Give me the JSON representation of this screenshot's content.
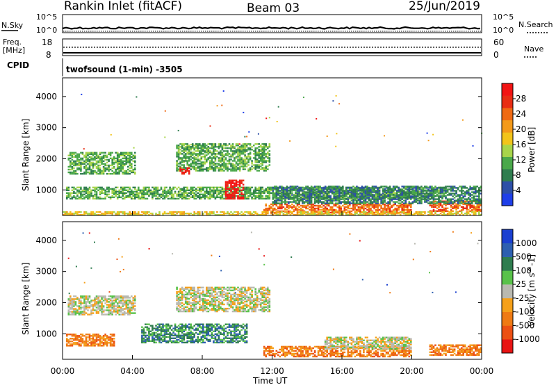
{
  "header": {
    "site": "Rankin Inlet (fitACF)",
    "beam": "Beam 03",
    "date": "25/Jun/2019"
  },
  "top_panels": {
    "nsky_label": "N.Sky",
    "nsky_ticks": [
      "10^5",
      "10^0"
    ],
    "nsearch_label": "N.Search",
    "nsearch_ticks": [
      "10^5",
      "10^0"
    ],
    "freq_label": "Freq.",
    "freq_unit": "[MHz]",
    "freq_ticks": [
      "18",
      "8"
    ],
    "nave_label": "Nave",
    "nave_ticks": [
      "60",
      "0"
    ],
    "cpid_label": "CPID",
    "cpid_text": "twofsound (1-min) -3505"
  },
  "chart_data": [
    {
      "type": "heatmap",
      "name": "power-panel",
      "ylabel": "Slant Range [km]",
      "yticks": [
        "1000",
        "2000",
        "3000",
        "4000"
      ],
      "ylim": [
        180,
        4600
      ],
      "xlim": [
        0,
        24
      ],
      "colorbar": {
        "label": "Power [dB]",
        "ticks": [
          "4",
          "8",
          "12",
          "16",
          "20",
          "24",
          "28"
        ],
        "colors": [
          "#1f3fe8",
          "#2d4fa7",
          "#2f7d4f",
          "#4aa84a",
          "#a8d54a",
          "#f2c41b",
          "#f39a1b",
          "#ef6a14",
          "#e82d14",
          "#f21414"
        ]
      },
      "echo_bands": [
        {
          "t0": 0.3,
          "t1": 4.2,
          "r0": 1500,
          "r1": 2200,
          "level": 3
        },
        {
          "t0": 0.2,
          "t1": 22.0,
          "r0": 700,
          "r1": 1100,
          "level": 3
        },
        {
          "t0": 6.5,
          "t1": 11.8,
          "r0": 1600,
          "r1": 2500,
          "level": 3
        },
        {
          "t0": 9.3,
          "t1": 10.3,
          "r0": 700,
          "r1": 1300,
          "level": 9
        },
        {
          "t0": 6.7,
          "t1": 7.2,
          "r0": 1500,
          "r1": 1700,
          "level": 9
        },
        {
          "t0": 11.5,
          "t1": 20.0,
          "r0": 250,
          "r1": 550,
          "level": 7
        },
        {
          "t0": 21.0,
          "t1": 24.0,
          "r0": 300,
          "r1": 650,
          "level": 7
        },
        {
          "t0": 0.0,
          "t1": 24.0,
          "r0": 180,
          "r1": 300,
          "level": 5
        },
        {
          "t0": 12.0,
          "t1": 24.0,
          "r0": 550,
          "r1": 1100,
          "level": 2
        }
      ]
    },
    {
      "type": "heatmap",
      "name": "velocity-panel",
      "ylabel": "Slant Range [km]",
      "yticks": [
        "1000",
        "2000",
        "3000",
        "4000"
      ],
      "ylim": [
        180,
        4600
      ],
      "xlim": [
        0,
        24
      ],
      "xticks": [
        "00:00",
        "04:00",
        "08:00",
        "12:00",
        "16:00",
        "20:00",
        "00:00"
      ],
      "xlabel": "Time UT",
      "colorbar": {
        "label": "Velocity [m s^-1]",
        "ticks": [
          "1000",
          "500",
          "100",
          "25",
          "-25",
          "-100",
          "-500",
          "-1000"
        ],
        "colors": [
          "#1a3fd0",
          "#2d5fb0",
          "#2f7d4f",
          "#59c24a",
          "#b9b9b0",
          "#f5a01a",
          "#ef7a14",
          "#ec5014",
          "#e81414"
        ]
      },
      "echo_bands": [
        {
          "t0": 0.3,
          "t1": 4.2,
          "r0": 1600,
          "r1": 2200,
          "level": 4
        },
        {
          "t0": 6.5,
          "t1": 11.8,
          "r0": 1700,
          "r1": 2500,
          "level": 4
        },
        {
          "t0": 0.2,
          "t1": 3.0,
          "r0": 600,
          "r1": 1000,
          "level": 6
        },
        {
          "t0": 4.5,
          "t1": 10.5,
          "r0": 700,
          "r1": 1300,
          "level": 2
        },
        {
          "t0": 11.5,
          "t1": 20.0,
          "r0": 250,
          "r1": 600,
          "level": 6
        },
        {
          "t0": 21.0,
          "t1": 24.0,
          "r0": 300,
          "r1": 650,
          "level": 6
        },
        {
          "t0": 15.0,
          "t1": 20.0,
          "r0": 500,
          "r1": 900,
          "level": 4
        }
      ]
    }
  ]
}
